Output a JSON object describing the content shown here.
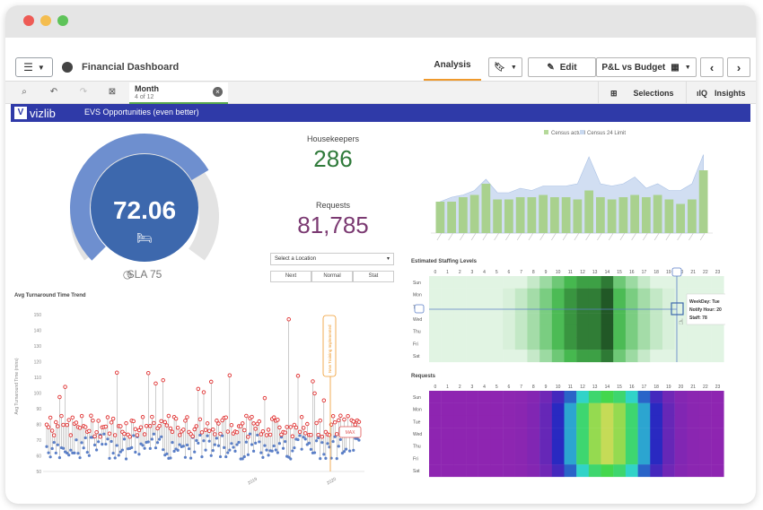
{
  "toolbar": {
    "app_title": "Financial Dashboard",
    "tab_analysis": "Analysis",
    "edit_label": "Edit",
    "sheet_label": "P&L vs Budget"
  },
  "selection_bar": {
    "chip_title": "Month",
    "chip_subtitle": "4 of 12",
    "selections_label": "Selections",
    "insights_label": "Insights"
  },
  "vizlib": {
    "logo_text": "vizlib",
    "sheet_name": "EVS Opportunities (even better)"
  },
  "gauge": {
    "value": "72.06",
    "value_num": 72.06,
    "sla_label": "SLA 75",
    "fill_fraction": 0.72
  },
  "kpis": {
    "housekeepers_label": "Housekeepers",
    "housekeepers_value": "286",
    "requests_label": "Requests",
    "requests_value": "81,785"
  },
  "location": {
    "placeholder": "Select a Location",
    "segments": [
      "Next",
      "Normal",
      "Stat"
    ]
  },
  "charts": {
    "trend_title": "Avg Turnaround Time Trend",
    "trend_yticks": [
      "150",
      "140",
      "130",
      "120",
      "110",
      "100",
      "90",
      "80",
      "70",
      "60",
      "50"
    ],
    "trend_xticks": [
      "2019",
      "2020"
    ],
    "trend_annotation": "New Training Implemented",
    "trend_target": "MAX",
    "staffing_title": "Estimated Staffing Levels",
    "requests_title": "Requests",
    "hours": [
      "0",
      "1",
      "2",
      "3",
      "4",
      "5",
      "6",
      "7",
      "8",
      "9",
      "10",
      "11",
      "12",
      "13",
      "14",
      "15",
      "16",
      "17",
      "18",
      "19",
      "20",
      "21",
      "22",
      "23"
    ],
    "days": [
      "Sun",
      "Mon",
      "Tue",
      "Wed",
      "Thu",
      "Fri",
      "Sat"
    ],
    "tooltip": {
      "weekday": "WeekDay: Tue",
      "hour": "Notify Hour: 20",
      "staff": "Staff: 78"
    }
  },
  "chart_data": [
    {
      "type": "bar",
      "title": "",
      "legend": [
        "Census actual",
        "Census 24 Limit"
      ],
      "legend_placement": "top",
      "values": [
        14,
        14,
        16,
        17,
        22,
        15,
        15,
        16,
        16,
        17,
        16,
        16,
        15,
        19,
        16,
        15,
        16,
        17,
        16,
        17,
        15,
        13,
        15,
        28
      ],
      "area_values": [
        14,
        16,
        17,
        19,
        24,
        18,
        18,
        20,
        19,
        21,
        21,
        21,
        22,
        34,
        22,
        21,
        22,
        25,
        20,
        22,
        19,
        19,
        22,
        35
      ],
      "ylim": [
        0,
        40
      ]
    },
    {
      "type": "heatmap",
      "title": "Estimated Staffing Levels"
    },
    {
      "type": "heatmap",
      "title": "Requests"
    },
    {
      "type": "scatter",
      "title": "Avg Turnaround Time Trend",
      "ylim": [
        50,
        150
      ]
    }
  ]
}
